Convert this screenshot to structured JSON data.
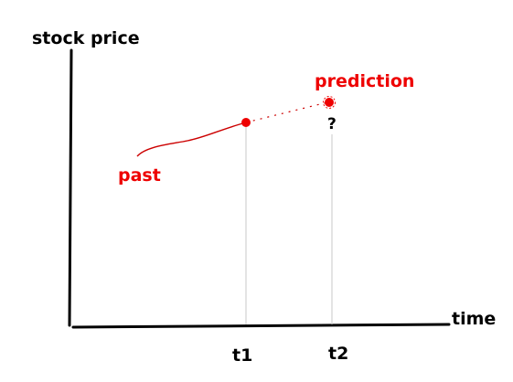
{
  "labels": {
    "y_axis": "stock price",
    "x_axis": "time",
    "past": "past",
    "prediction": "prediction",
    "question": "?",
    "t1": "t1",
    "t2": "t2"
  },
  "colors": {
    "axis": "#000000",
    "highlight": "#ee0000",
    "guide": "#c8c8c8"
  }
}
